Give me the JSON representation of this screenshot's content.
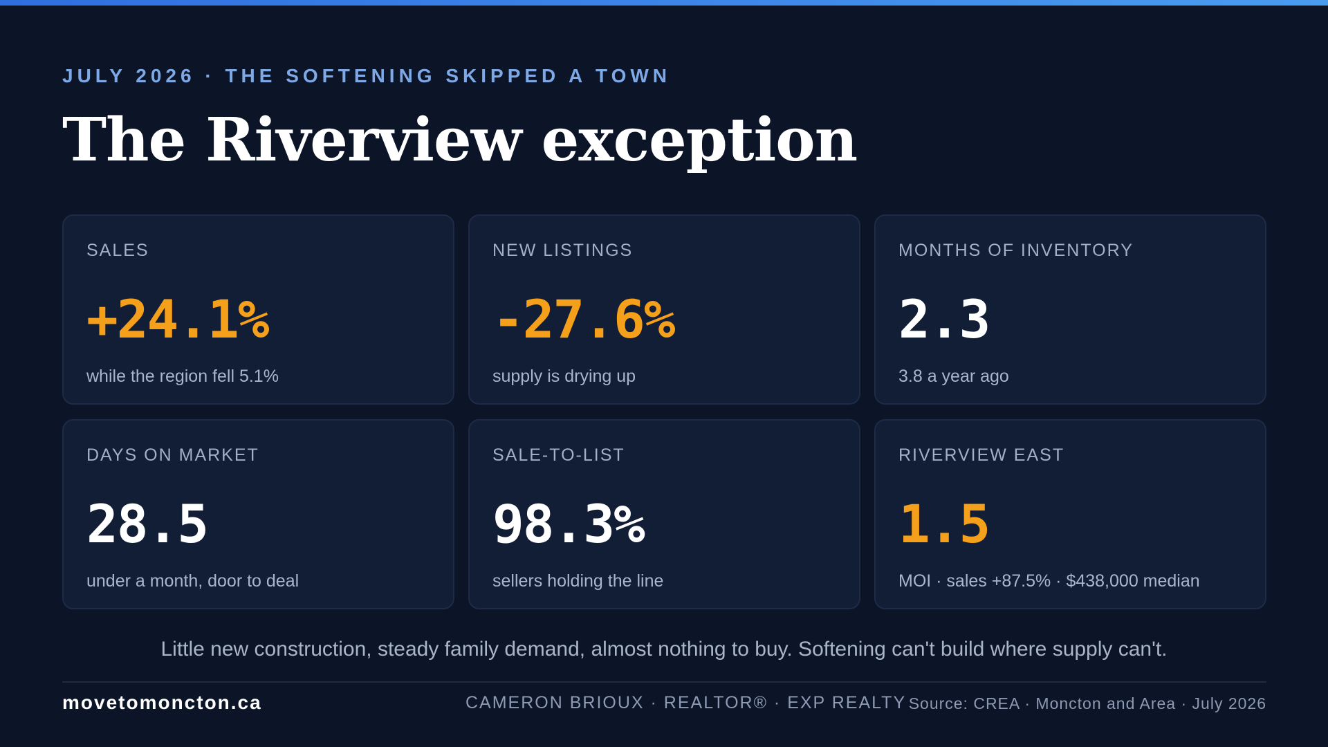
{
  "header": {
    "eyebrow": "JULY 2026 · THE SOFTENING SKIPPED A TOWN",
    "title": "The Riverview exception"
  },
  "cards": [
    {
      "label": "SALES",
      "value": "+24.1%",
      "sub": "while the region fell 5.1%",
      "accent": true
    },
    {
      "label": "NEW LISTINGS",
      "value": "-27.6%",
      "sub": "supply is drying up",
      "accent": true
    },
    {
      "label": "MONTHS OF INVENTORY",
      "value": "2.3",
      "sub": "3.8 a year ago",
      "accent": false
    },
    {
      "label": "DAYS ON MARKET",
      "value": "28.5",
      "sub": "under a month, door to deal",
      "accent": false
    },
    {
      "label": "SALE-TO-LIST",
      "value": "98.3%",
      "sub": "sellers holding the line",
      "accent": false
    },
    {
      "label": "RIVERVIEW EAST",
      "value": "1.5",
      "sub": "MOI · sales +87.5% · $438,000 median",
      "accent": true
    }
  ],
  "tagline": "Little new construction, steady family demand, almost nothing to buy. Softening can't build where supply can't.",
  "footer": {
    "site": "movetomoncton.ca",
    "agent": "CAMERON BRIOUX · REALTOR® · EXP REALTY",
    "source": "Source: CREA · Moncton and Area · July 2026"
  },
  "colors": {
    "background": "#0c1527",
    "card": "#121d36",
    "accent": "#f5a01a",
    "eyebrow": "#7fa8e6"
  }
}
